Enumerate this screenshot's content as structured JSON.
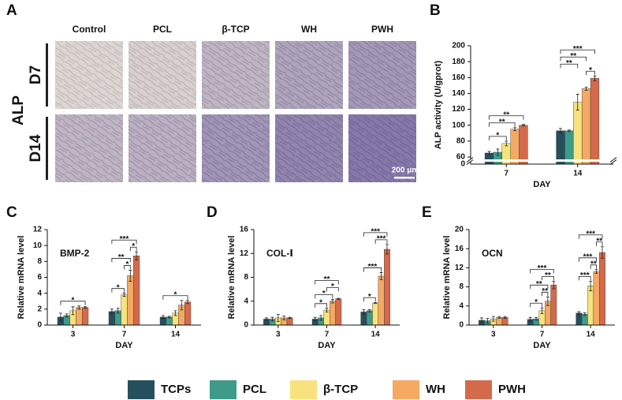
{
  "panel_a": {
    "label": "A",
    "side_label": "ALP",
    "columns": [
      "Control",
      "PCL",
      "β-TCP",
      "WH",
      "PWH"
    ],
    "rows": [
      "D7",
      "D14"
    ],
    "scale_bar": "200 μm"
  },
  "legend": [
    {
      "name": "TCPs",
      "color": "#264f5e"
    },
    {
      "name": "PCL",
      "color": "#3e9b8a"
    },
    {
      "name": "β-TCP",
      "color": "#f7e27e"
    },
    {
      "name": "WH",
      "color": "#f4aa63"
    },
    {
      "name": "PWH",
      "color": "#d46a4b"
    }
  ],
  "chart_data": [
    {
      "type": "bar",
      "panel_label": "B",
      "y_label": "ALP activity (U/gprot)",
      "x_label": "DAY",
      "categories": [
        "7",
        "14"
      ],
      "series": [
        {
          "values": [
            65,
            93
          ],
          "errors": [
            2,
            3
          ]
        },
        {
          "values": [
            66,
            93
          ],
          "errors": [
            4,
            1
          ]
        },
        {
          "values": [
            77,
            129
          ],
          "errors": [
            3,
            10
          ]
        },
        {
          "values": [
            95,
            146
          ],
          "errors": [
            2,
            2
          ]
        },
        {
          "values": [
            100,
            159
          ],
          "errors": [
            1,
            3
          ]
        }
      ],
      "ylim": [
        60,
        200
      ],
      "yticks": [
        60,
        80,
        100,
        120,
        140,
        160,
        180,
        200
      ],
      "axis_break": {
        "below": 0
      },
      "annotations": [
        {
          "text": "*",
          "category": 0,
          "between": [
            0,
            2
          ]
        },
        {
          "text": "**",
          "category": 0,
          "between": [
            0,
            3
          ]
        },
        {
          "text": "**",
          "category": 0,
          "between": [
            0,
            4
          ]
        },
        {
          "text": "*",
          "category": 1,
          "between": [
            3,
            4
          ]
        },
        {
          "text": "**",
          "category": 1,
          "between": [
            0,
            2
          ]
        },
        {
          "text": "**",
          "category": 1,
          "between": [
            0,
            3
          ]
        },
        {
          "text": "***",
          "category": 1,
          "between": [
            0,
            4
          ]
        }
      ]
    },
    {
      "type": "bar",
      "panel_label": "C",
      "title": "BMP-2",
      "y_label": "Relative  mRNA level",
      "x_label": "DAY",
      "categories": [
        "3",
        "7",
        "14"
      ],
      "series": [
        {
          "values": [
            1.0,
            1.7,
            1.0
          ],
          "errors": [
            0.5,
            0.3,
            0.2
          ]
        },
        {
          "values": [
            1.2,
            1.8,
            1.0
          ],
          "errors": [
            0.2,
            0.3,
            0.1
          ]
        },
        {
          "values": [
            1.8,
            3.8,
            1.5
          ],
          "errors": [
            0.5,
            0.2,
            0.3
          ]
        },
        {
          "values": [
            2.2,
            6.2,
            2.5
          ],
          "errors": [
            0.2,
            0.7,
            0.6
          ]
        },
        {
          "values": [
            2.2,
            8.7,
            2.9
          ],
          "errors": [
            0.1,
            0.5,
            0.2
          ]
        }
      ],
      "ylim": [
        0,
        12
      ],
      "yticks": [
        0,
        2,
        4,
        6,
        8,
        10,
        12
      ],
      "annotations": [
        {
          "text": "*",
          "category": 0,
          "between": [
            0,
            4
          ]
        },
        {
          "text": "*",
          "category": 1,
          "between": [
            0,
            2
          ]
        },
        {
          "text": "*",
          "category": 1,
          "between": [
            2,
            3
          ]
        },
        {
          "text": "**",
          "category": 1,
          "between": [
            0,
            3
          ]
        },
        {
          "text": "*",
          "category": 1,
          "between": [
            3,
            4
          ]
        },
        {
          "text": "***",
          "category": 1,
          "between": [
            0,
            4
          ]
        },
        {
          "text": "*",
          "category": 2,
          "between": [
            0,
            4
          ]
        }
      ]
    },
    {
      "type": "bar",
      "panel_label": "D",
      "title": "COL-Ⅰ",
      "y_label": "Relative mRNA level",
      "x_label": "DAY",
      "categories": [
        "3",
        "7",
        "14"
      ],
      "series": [
        {
          "values": [
            1.0,
            1.0,
            2.2
          ],
          "errors": [
            0.2,
            0.3,
            0.4
          ]
        },
        {
          "values": [
            1.0,
            1.2,
            2.4
          ],
          "errors": [
            0.3,
            0.4,
            0.2
          ]
        },
        {
          "values": [
            1.2,
            2.5,
            3.7
          ],
          "errors": [
            0.6,
            0.3,
            0.1
          ]
        },
        {
          "values": [
            1.2,
            4.0,
            8.2
          ],
          "errors": [
            0.3,
            0.3,
            0.6
          ]
        },
        {
          "values": [
            1.2,
            4.4,
            12.7
          ],
          "errors": [
            0.1,
            0.1,
            0.8
          ]
        }
      ],
      "ylim": [
        0,
        16
      ],
      "yticks": [
        0,
        4,
        8,
        12,
        16
      ],
      "annotations": [
        {
          "text": "*",
          "category": 1,
          "between": [
            0,
            2
          ]
        },
        {
          "text": "*",
          "category": 1,
          "between": [
            0,
            3
          ]
        },
        {
          "text": "*",
          "category": 1,
          "between": [
            2,
            4
          ]
        },
        {
          "text": "**",
          "category": 1,
          "between": [
            0,
            4
          ]
        },
        {
          "text": "*",
          "category": 2,
          "between": [
            0,
            2
          ]
        },
        {
          "text": "***",
          "category": 2,
          "between": [
            0,
            3
          ]
        },
        {
          "text": "***",
          "category": 2,
          "between": [
            2,
            4
          ]
        },
        {
          "text": "***",
          "category": 2,
          "between": [
            0,
            4
          ]
        }
      ]
    },
    {
      "type": "bar",
      "panel_label": "E",
      "title": "OCN",
      "y_label": "Relative mRNA level",
      "x_label": "DAY",
      "categories": [
        "3",
        "7",
        "14"
      ],
      "series": [
        {
          "values": [
            1.0,
            1.2,
            2.5
          ],
          "errors": [
            0.5,
            0.4,
            0.3
          ]
        },
        {
          "values": [
            0.9,
            1.3,
            2.3
          ],
          "errors": [
            0.5,
            0.3,
            0.3
          ]
        },
        {
          "values": [
            1.3,
            3.0,
            8.2
          ],
          "errors": [
            0.5,
            0.6,
            1.0
          ]
        },
        {
          "values": [
            1.6,
            5.0,
            11.2
          ],
          "errors": [
            0.2,
            0.9,
            0.4
          ]
        },
        {
          "values": [
            1.6,
            8.4,
            15.2
          ],
          "errors": [
            0.2,
            0.8,
            1.2
          ]
        }
      ],
      "ylim": [
        0,
        20
      ],
      "yticks": [
        0,
        4,
        8,
        12,
        16,
        20
      ],
      "annotations": [
        {
          "text": "*",
          "category": 1,
          "between": [
            0,
            2
          ]
        },
        {
          "text": "**",
          "category": 1,
          "between": [
            2,
            3
          ]
        },
        {
          "text": "**",
          "category": 1,
          "between": [
            0,
            3
          ]
        },
        {
          "text": "**",
          "category": 1,
          "between": [
            2,
            4
          ]
        },
        {
          "text": "***",
          "category": 1,
          "between": [
            0,
            4
          ]
        },
        {
          "text": "***",
          "category": 2,
          "between": [
            0,
            2
          ]
        },
        {
          "text": "**",
          "category": 2,
          "between": [
            2,
            3
          ]
        },
        {
          "text": "***",
          "category": 2,
          "between": [
            0,
            3
          ]
        },
        {
          "text": "**",
          "category": 2,
          "between": [
            3,
            4
          ]
        },
        {
          "text": "***",
          "category": 2,
          "between": [
            0,
            4
          ]
        }
      ]
    }
  ]
}
